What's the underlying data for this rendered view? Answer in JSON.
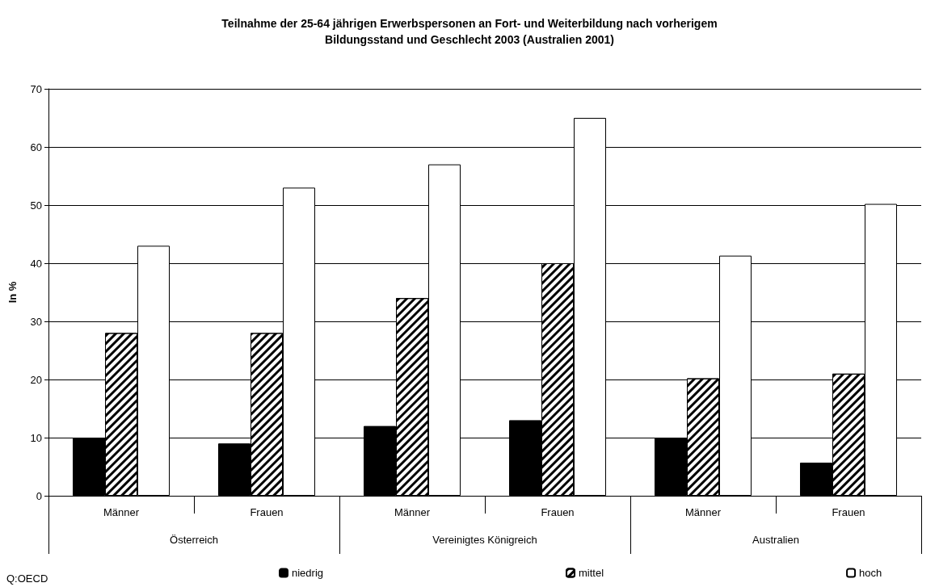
{
  "chart_data": {
    "type": "bar",
    "title": "Teilnahme der 25-64 jährigen Erwerbspersonen an Fort- und Weiterbildung nach vorherigem\nBildungsstand und Geschlecht 2003 (Australien 2001)",
    "ylabel": "In %",
    "categories": [
      "Männer",
      "Frauen",
      "Männer",
      "Frauen",
      "Männer",
      "Frauen"
    ],
    "series": [
      {
        "name": "niedrig",
        "color": "#000000",
        "values": [
          10,
          9,
          12,
          13,
          10,
          5.7
        ]
      },
      {
        "name": "mittel",
        "color": "#000000",
        "values": [
          28,
          28,
          34,
          40,
          20.2,
          21
        ]
      },
      {
        "name": "hoch",
        "color": "#ffffff",
        "values": [
          43,
          53,
          57,
          65,
          41.3,
          50.2
        ]
      }
    ],
    "annotations": [
      "Österreich",
      "Vereinigtes Königreich",
      "Australien",
      "Q:OECD"
    ],
    "ylim": [
      0,
      70
    ],
    "yticks": [
      0,
      10,
      20,
      30,
      40,
      50,
      60,
      70
    ],
    "grid": "y",
    "legend": "bottom"
  }
}
